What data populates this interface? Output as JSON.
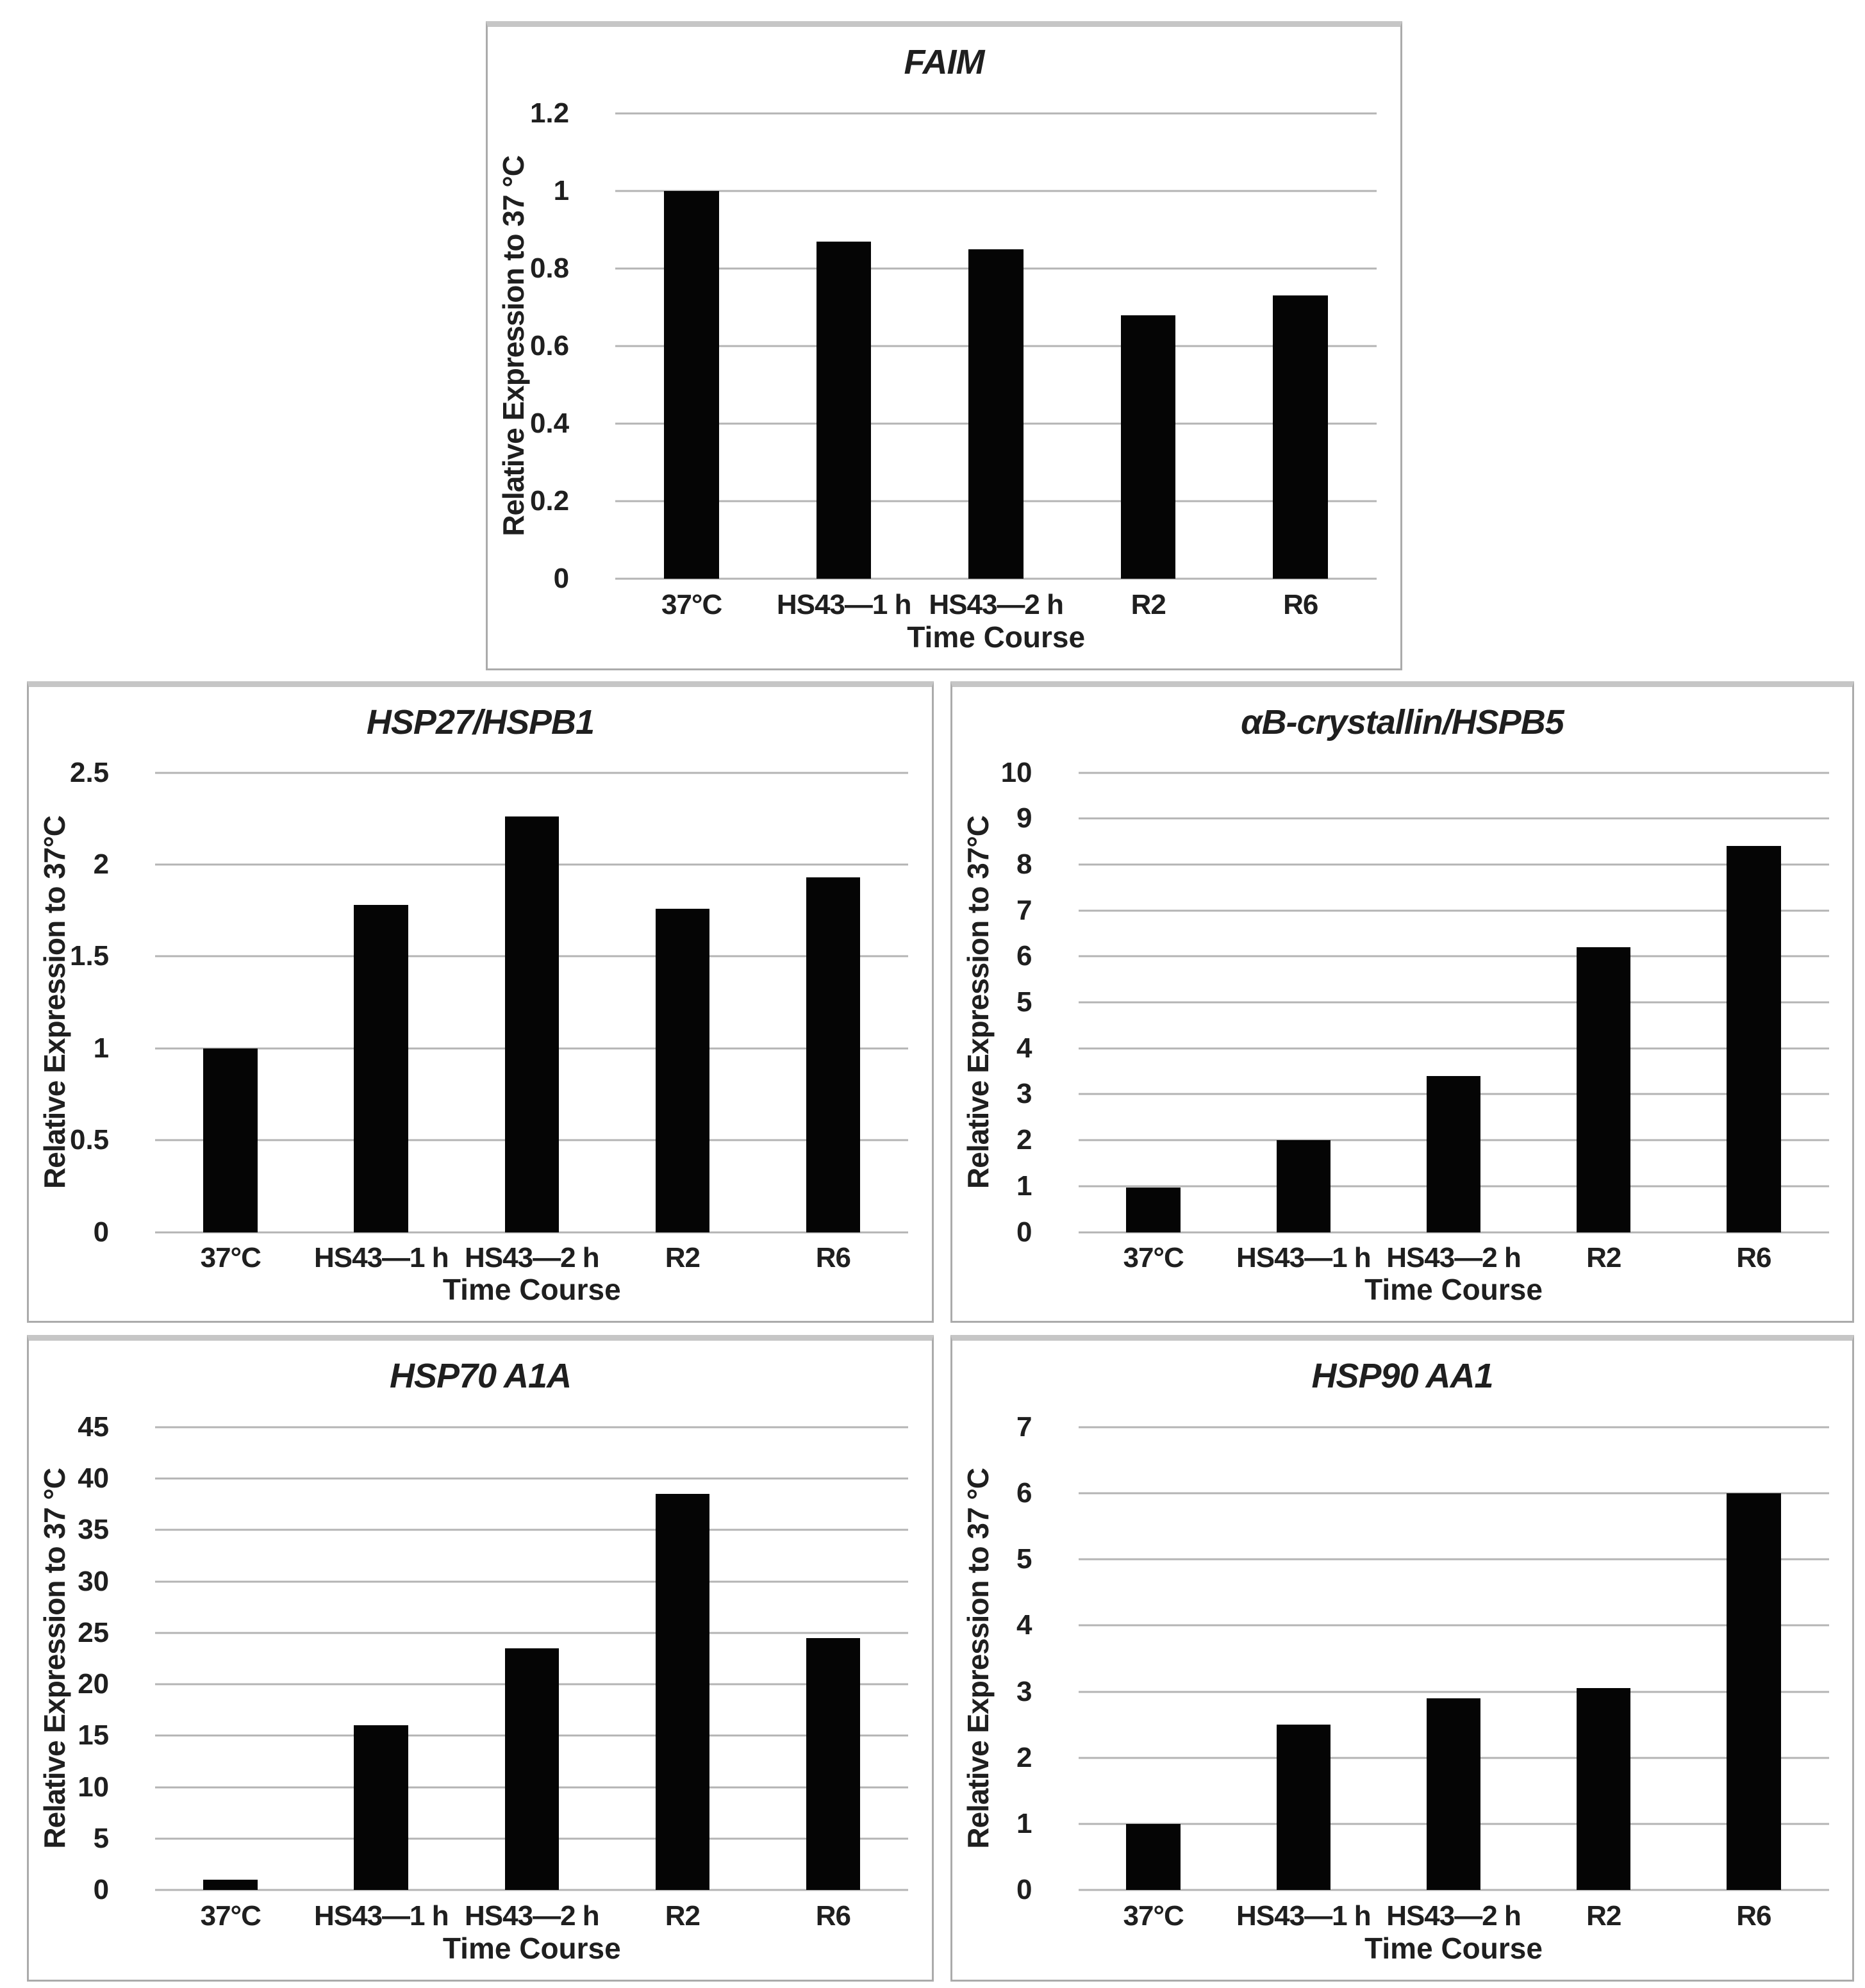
{
  "figure": {
    "background": "#ffffff",
    "bar_color": "#050505",
    "gridline_color": "#b4b4b4",
    "box_border_color": "#ababab",
    "text_color": "#1f1f1f"
  },
  "chart_data": [
    {
      "type": "bar",
      "title": "FAIM",
      "ylabel": "Relative Expression to 37 °C",
      "xlabel": "Time Course",
      "categories": [
        "37°C",
        "HS43—1 h",
        "HS43—2 h",
        "R2",
        "R6"
      ],
      "values": [
        1.0,
        0.87,
        0.85,
        0.68,
        0.73
      ],
      "ylim": [
        0,
        1.2
      ],
      "yticks": [
        "0",
        "0.2",
        "0.4",
        "0.6",
        "0.8",
        "1",
        "1.2"
      ],
      "grid": true,
      "legend": "none"
    },
    {
      "type": "bar",
      "title": "HSP27/HSPB1",
      "ylabel": "Relative Expression to 37°C",
      "xlabel": "Time Course",
      "categories": [
        "37°C",
        "HS43—1 h",
        "HS43—2 h",
        "R2",
        "R6"
      ],
      "values": [
        1.0,
        1.78,
        2.26,
        1.76,
        1.93
      ],
      "ylim": [
        0,
        2.5
      ],
      "yticks": [
        "0",
        "0.5",
        "1",
        "1.5",
        "2",
        "2.5"
      ],
      "grid": true,
      "legend": "none"
    },
    {
      "type": "bar",
      "title": "αB-crystallin/HSPB5",
      "ylabel": "Relative Expression to 37°C",
      "xlabel": "Time Course",
      "categories": [
        "37°C",
        "HS43—1 h",
        "HS43—2 h",
        "R2",
        "R6"
      ],
      "values": [
        0.97,
        2.0,
        3.4,
        6.2,
        8.4
      ],
      "ylim": [
        0,
        10
      ],
      "yticks": [
        "0",
        "1",
        "2",
        "3",
        "4",
        "5",
        "6",
        "7",
        "8",
        "9",
        "10"
      ],
      "grid": true,
      "legend": "none"
    },
    {
      "type": "bar",
      "title": "HSP70 A1A",
      "ylabel": "Relative Expression to 37 °C",
      "xlabel": "Time Course",
      "categories": [
        "37°C",
        "HS43—1 h",
        "HS43—2 h",
        "R2",
        "R6"
      ],
      "values": [
        1.0,
        16.0,
        23.5,
        38.5,
        24.5
      ],
      "ylim": [
        0,
        45
      ],
      "yticks": [
        "0",
        "5",
        "10",
        "15",
        "20",
        "25",
        "30",
        "35",
        "40",
        "45"
      ],
      "grid": true,
      "legend": "none"
    },
    {
      "type": "bar",
      "title": "HSP90 AA1",
      "ylabel": "Relative Expression to 37 °C",
      "xlabel": "Time Course",
      "categories": [
        "37°C",
        "HS43—1 h",
        "HS43—2 h",
        "R2",
        "R6"
      ],
      "values": [
        1.0,
        2.5,
        2.9,
        3.05,
        6.0
      ],
      "ylim": [
        0,
        7
      ],
      "yticks": [
        "0",
        "1",
        "2",
        "3",
        "4",
        "5",
        "6",
        "7"
      ],
      "grid": true,
      "legend": "none"
    }
  ]
}
